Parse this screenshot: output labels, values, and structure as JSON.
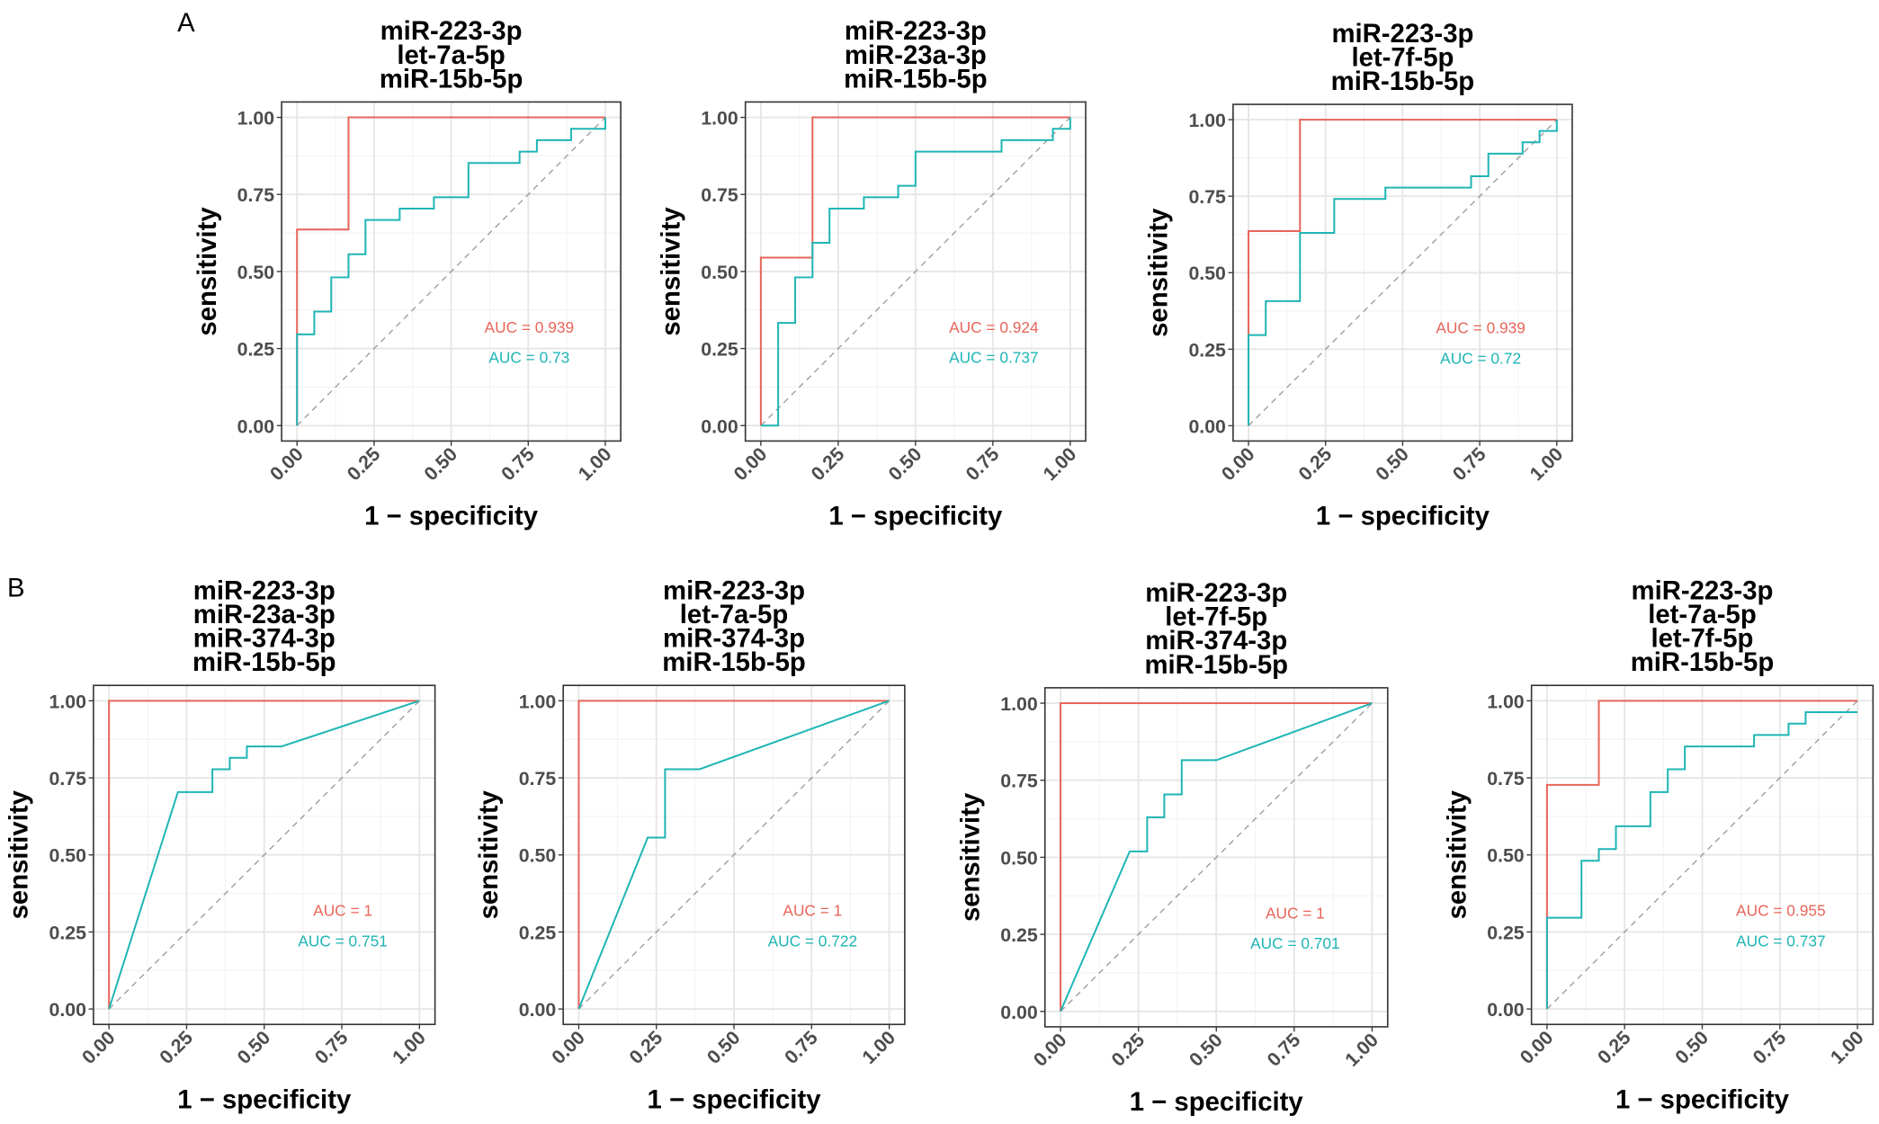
{
  "panel_labels": [
    "A",
    "B"
  ],
  "chart_data": [
    {
      "type": "line",
      "title": [
        "miR-223-3p",
        "let-7a-5p",
        "miR-15b-5p"
      ],
      "xlabel": "1 − specificity",
      "ylabel": "sensitivity",
      "xlim": [
        0,
        1
      ],
      "ylim": [
        0,
        1
      ],
      "xticks": [
        {
          "value": 0,
          "label": "0.00"
        },
        {
          "value": 0.25,
          "label": "0.25"
        },
        {
          "value": 0.5,
          "label": "0.50"
        },
        {
          "value": 0.75,
          "label": "0.75"
        },
        {
          "value": 1,
          "label": "1.00"
        }
      ],
      "yticks": [
        {
          "value": 0,
          "label": "0.00"
        },
        {
          "value": 0.25,
          "label": "0.25"
        },
        {
          "value": 0.5,
          "label": "0.50"
        },
        {
          "value": 0.75,
          "label": "0.75"
        },
        {
          "value": 1,
          "label": "1.00"
        }
      ],
      "grid": true,
      "series": [
        {
          "color": "#e8655a",
          "label": "AUC = 0.939",
          "x": [
            0,
            0,
            0.167,
            0.167,
            1
          ],
          "y": [
            0,
            0.636,
            0.636,
            1,
            1
          ]
        },
        {
          "color": "#1fb5b5",
          "label": "AUC = 0.73",
          "x": [
            0,
            0,
            0.056,
            0.056,
            0.111,
            0.111,
            0.167,
            0.167,
            0.222,
            0.222,
            0.333,
            0.333,
            0.444,
            0.444,
            0.556,
            0.556,
            0.722,
            0.722,
            0.778,
            0.778,
            0.889,
            0.889,
            1,
            1
          ],
          "y": [
            0,
            0.296,
            0.296,
            0.37,
            0.37,
            0.481,
            0.481,
            0.556,
            0.556,
            0.667,
            0.667,
            0.704,
            0.704,
            0.741,
            0.741,
            0.852,
            0.852,
            0.889,
            0.889,
            0.926,
            0.926,
            0.963,
            0.963,
            1
          ]
        }
      ]
    },
    {
      "type": "line",
      "title": [
        "miR-223-3p",
        "miR-23a-3p",
        "miR-15b-5p"
      ],
      "xlabel": "1 − specificity",
      "ylabel": "sensitivity",
      "xlim": [
        0,
        1
      ],
      "ylim": [
        0,
        1
      ],
      "xticks": [
        {
          "value": 0,
          "label": "0.00"
        },
        {
          "value": 0.25,
          "label": "0.25"
        },
        {
          "value": 0.5,
          "label": "0.50"
        },
        {
          "value": 0.75,
          "label": "0.75"
        },
        {
          "value": 1,
          "label": "1.00"
        }
      ],
      "yticks": [
        {
          "value": 0,
          "label": "0.00"
        },
        {
          "value": 0.25,
          "label": "0.25"
        },
        {
          "value": 0.5,
          "label": "0.50"
        },
        {
          "value": 0.75,
          "label": "0.75"
        },
        {
          "value": 1,
          "label": "1.00"
        }
      ],
      "grid": true,
      "series": [
        {
          "color": "#e8655a",
          "label": "AUC = 0.924",
          "x": [
            0,
            0,
            0.167,
            0.167,
            1
          ],
          "y": [
            0,
            0.545,
            0.545,
            1,
            1
          ]
        },
        {
          "color": "#1fb5b5",
          "label": "AUC = 0.737",
          "x": [
            0,
            0.056,
            0.056,
            0.111,
            0.111,
            0.167,
            0.167,
            0.222,
            0.222,
            0.333,
            0.333,
            0.444,
            0.444,
            0.5,
            0.5,
            0.778,
            0.778,
            0.944,
            0.944,
            1,
            1
          ],
          "y": [
            0,
            0,
            0.333,
            0.333,
            0.481,
            0.481,
            0.593,
            0.593,
            0.704,
            0.704,
            0.741,
            0.741,
            0.778,
            0.778,
            0.889,
            0.889,
            0.926,
            0.926,
            0.963,
            0.963,
            1
          ]
        }
      ]
    },
    {
      "type": "line",
      "title": [
        "miR-223-3p",
        "let-7f-5p",
        "miR-15b-5p"
      ],
      "xlabel": "1 − specificity",
      "ylabel": "sensitivity",
      "xlim": [
        0,
        1
      ],
      "ylim": [
        0,
        1
      ],
      "xticks": [
        {
          "value": 0,
          "label": "0.00"
        },
        {
          "value": 0.25,
          "label": "0.25"
        },
        {
          "value": 0.5,
          "label": "0.50"
        },
        {
          "value": 0.75,
          "label": "0.75"
        },
        {
          "value": 1,
          "label": "1.00"
        }
      ],
      "yticks": [
        {
          "value": 0,
          "label": "0.00"
        },
        {
          "value": 0.25,
          "label": "0.25"
        },
        {
          "value": 0.5,
          "label": "0.50"
        },
        {
          "value": 0.75,
          "label": "0.75"
        },
        {
          "value": 1,
          "label": "1.00"
        }
      ],
      "grid": true,
      "series": [
        {
          "color": "#e8655a",
          "label": "AUC = 0.939",
          "x": [
            0,
            0,
            0.167,
            0.167,
            1
          ],
          "y": [
            0,
            0.636,
            0.636,
            1,
            1
          ]
        },
        {
          "color": "#1fb5b5",
          "label": "AUC = 0.72",
          "x": [
            0,
            0,
            0.056,
            0.056,
            0.167,
            0.167,
            0.278,
            0.278,
            0.444,
            0.444,
            0.722,
            0.722,
            0.778,
            0.778,
            0.889,
            0.889,
            0.944,
            0.944,
            1,
            1
          ],
          "y": [
            0,
            0.296,
            0.296,
            0.407,
            0.407,
            0.63,
            0.63,
            0.741,
            0.741,
            0.778,
            0.778,
            0.815,
            0.815,
            0.889,
            0.889,
            0.926,
            0.926,
            0.963,
            0.963,
            1
          ]
        }
      ]
    },
    {
      "type": "line",
      "title": [
        "miR-223-3p",
        "miR-23a-3p",
        "miR-374-3p",
        "miR-15b-5p"
      ],
      "xlabel": "1 − specificity",
      "ylabel": "sensitivity",
      "xlim": [
        0,
        1
      ],
      "ylim": [
        0,
        1
      ],
      "xticks": [
        {
          "value": 0,
          "label": "0.00"
        },
        {
          "value": 0.25,
          "label": "0.25"
        },
        {
          "value": 0.5,
          "label": "0.50"
        },
        {
          "value": 0.75,
          "label": "0.75"
        },
        {
          "value": 1,
          "label": "1.00"
        }
      ],
      "yticks": [
        {
          "value": 0,
          "label": "0.00"
        },
        {
          "value": 0.25,
          "label": "0.25"
        },
        {
          "value": 0.5,
          "label": "0.50"
        },
        {
          "value": 0.75,
          "label": "0.75"
        },
        {
          "value": 1,
          "label": "1.00"
        }
      ],
      "grid": true,
      "series": [
        {
          "color": "#e8655a",
          "label": "AUC = 1",
          "x": [
            0,
            0,
            1
          ],
          "y": [
            0,
            1,
            1
          ]
        },
        {
          "color": "#1fb5b5",
          "label": "AUC = 0.751",
          "x": [
            0,
            0.222,
            0.333,
            0.333,
            0.389,
            0.389,
            0.444,
            0.444,
            0.556,
            1
          ],
          "y": [
            0,
            0.704,
            0.704,
            0.778,
            0.778,
            0.815,
            0.815,
            0.852,
            0.852,
            1
          ]
        }
      ]
    },
    {
      "type": "line",
      "title": [
        "miR-223-3p",
        "let-7a-5p",
        "miR-374-3p",
        "miR-15b-5p"
      ],
      "xlabel": "1 − specificity",
      "ylabel": "sensitivity",
      "xlim": [
        0,
        1
      ],
      "ylim": [
        0,
        1
      ],
      "xticks": [
        {
          "value": 0,
          "label": "0.00"
        },
        {
          "value": 0.25,
          "label": "0.25"
        },
        {
          "value": 0.5,
          "label": "0.50"
        },
        {
          "value": 0.75,
          "label": "0.75"
        },
        {
          "value": 1,
          "label": "1.00"
        }
      ],
      "yticks": [
        {
          "value": 0,
          "label": "0.00"
        },
        {
          "value": 0.25,
          "label": "0.25"
        },
        {
          "value": 0.5,
          "label": "0.50"
        },
        {
          "value": 0.75,
          "label": "0.75"
        },
        {
          "value": 1,
          "label": "1.00"
        }
      ],
      "grid": true,
      "series": [
        {
          "color": "#e8655a",
          "label": "AUC = 1",
          "x": [
            0,
            0,
            1
          ],
          "y": [
            0,
            1,
            1
          ]
        },
        {
          "color": "#1fb5b5",
          "label": "AUC = 0.722",
          "x": [
            0,
            0.222,
            0.278,
            0.278,
            0.389,
            1
          ],
          "y": [
            0,
            0.556,
            0.556,
            0.778,
            0.778,
            1
          ]
        }
      ]
    },
    {
      "type": "line",
      "title": [
        "miR-223-3p",
        "let-7f-5p",
        "miR-374-3p",
        "miR-15b-5p"
      ],
      "xlabel": "1 − specificity",
      "ylabel": "sensitivity",
      "xlim": [
        0,
        1
      ],
      "ylim": [
        0,
        1
      ],
      "xticks": [
        {
          "value": 0,
          "label": "0.00"
        },
        {
          "value": 0.25,
          "label": "0.25"
        },
        {
          "value": 0.5,
          "label": "0.50"
        },
        {
          "value": 0.75,
          "label": "0.75"
        },
        {
          "value": 1,
          "label": "1.00"
        }
      ],
      "yticks": [
        {
          "value": 0,
          "label": "0.00"
        },
        {
          "value": 0.25,
          "label": "0.25"
        },
        {
          "value": 0.5,
          "label": "0.50"
        },
        {
          "value": 0.75,
          "label": "0.75"
        },
        {
          "value": 1,
          "label": "1.00"
        }
      ],
      "grid": true,
      "series": [
        {
          "color": "#e8655a",
          "label": "AUC = 1",
          "x": [
            0,
            0,
            1
          ],
          "y": [
            0,
            1,
            1
          ]
        },
        {
          "color": "#1fb5b5",
          "label": "AUC = 0.701",
          "x": [
            0,
            0.222,
            0.278,
            0.278,
            0.333,
            0.333,
            0.389,
            0.389,
            0.5,
            1
          ],
          "y": [
            0,
            0.519,
            0.519,
            0.63,
            0.63,
            0.704,
            0.704,
            0.815,
            0.815,
            1
          ]
        }
      ]
    },
    {
      "type": "line",
      "title": [
        "miR-223-3p",
        "let-7a-5p",
        "let-7f-5p",
        "miR-15b-5p"
      ],
      "xlabel": "1 − specificity",
      "ylabel": "sensitivity",
      "xlim": [
        0,
        1
      ],
      "ylim": [
        0,
        1
      ],
      "xticks": [
        {
          "value": 0,
          "label": "0.00"
        },
        {
          "value": 0.25,
          "label": "0.25"
        },
        {
          "value": 0.5,
          "label": "0.50"
        },
        {
          "value": 0.75,
          "label": "0.75"
        },
        {
          "value": 1,
          "label": "1.00"
        }
      ],
      "yticks": [
        {
          "value": 0,
          "label": "0.00"
        },
        {
          "value": 0.25,
          "label": "0.25"
        },
        {
          "value": 0.5,
          "label": "0.50"
        },
        {
          "value": 0.75,
          "label": "0.75"
        },
        {
          "value": 1,
          "label": "1.00"
        }
      ],
      "grid": true,
      "series": [
        {
          "color": "#e8655a",
          "label": "AUC = 0.955",
          "x": [
            0,
            0,
            0.167,
            0.167,
            1
          ],
          "y": [
            0,
            0.727,
            0.727,
            1,
            1
          ]
        },
        {
          "color": "#1fb5b5",
          "label": "AUC = 0.737",
          "x": [
            0,
            0,
            0.111,
            0.111,
            0.167,
            0.167,
            0.222,
            0.222,
            0.333,
            0.333,
            0.389,
            0.389,
            0.444,
            0.444,
            0.667,
            0.667,
            0.778,
            0.778,
            0.833,
            0.833,
            1
          ],
          "y": [
            0,
            0.296,
            0.296,
            0.481,
            0.481,
            0.519,
            0.519,
            0.593,
            0.593,
            0.704,
            0.704,
            0.778,
            0.778,
            0.852,
            0.852,
            0.889,
            0.889,
            0.926,
            0.926,
            0.963,
            0.963
          ]
        }
      ]
    }
  ]
}
